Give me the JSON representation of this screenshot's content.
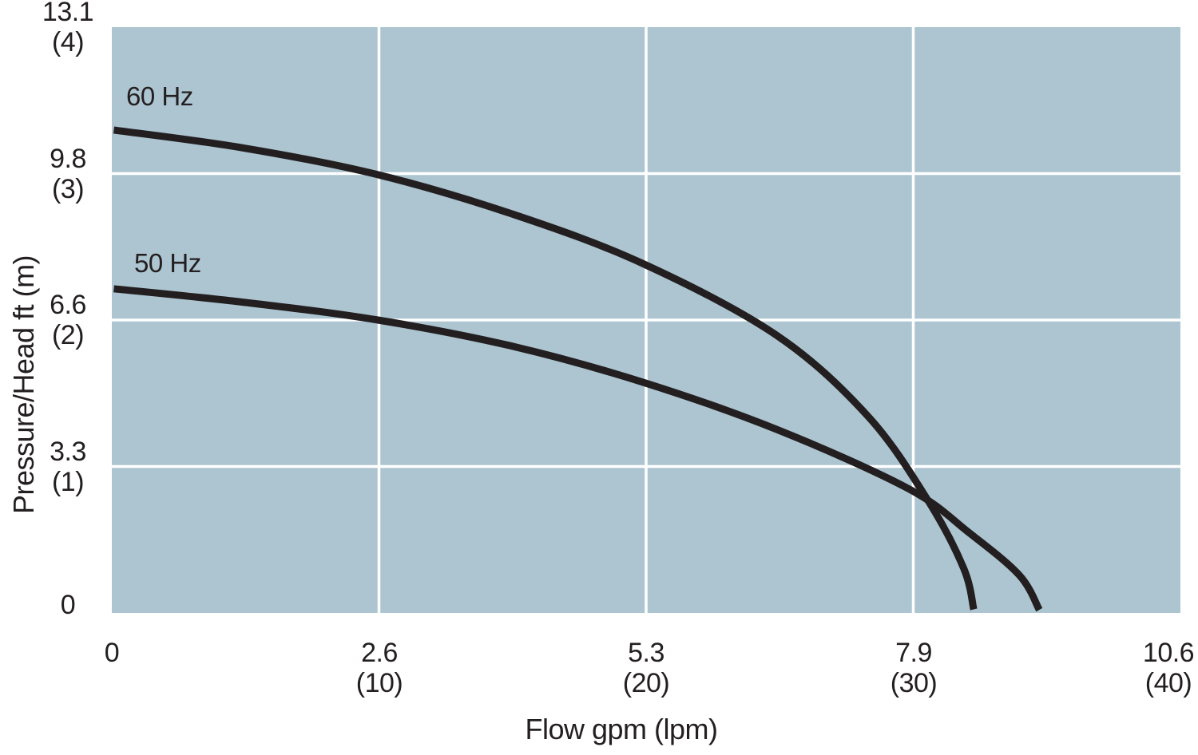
{
  "chart_data": {
    "type": "line",
    "title": "",
    "xlabel": "Flow gpm (lpm)",
    "ylabel": "Pressure/Head ft (m)",
    "xlim": [
      0,
      10.6
    ],
    "ylim": [
      0,
      13.1
    ],
    "grid": true,
    "legend_position": "inline-curve-labels",
    "plot_bg_color": "#adc5d0",
    "grid_color": "#ffffff",
    "line_color": "#231f20",
    "text_color": "#231f20",
    "x_ticks": [
      {
        "label_gpm": "0",
        "label_lpm": "",
        "value": 0
      },
      {
        "label_gpm": "2.6",
        "label_lpm": "(10)",
        "value": 2.65
      },
      {
        "label_gpm": "5.3",
        "label_lpm": "(20)",
        "value": 5.3
      },
      {
        "label_gpm": "7.9",
        "label_lpm": "(30)",
        "value": 7.95
      },
      {
        "label_gpm": "10.6",
        "label_lpm": "(40)",
        "value": 10.6
      }
    ],
    "y_ticks": [
      {
        "label_ft": "13.1",
        "label_m": "(4)",
        "value": 13.1
      },
      {
        "label_ft": "9.8",
        "label_m": "(3)",
        "value": 9.825
      },
      {
        "label_ft": "6.6",
        "label_m": "(2)",
        "value": 6.55
      },
      {
        "label_ft": "3.3",
        "label_m": "(1)",
        "value": 3.275
      },
      {
        "label_ft": "0",
        "label_m": "",
        "value": 0
      }
    ],
    "series": [
      {
        "name": "60 Hz",
        "x_gpm": [
          0.02,
          1.3,
          2.64,
          4.0,
          5.28,
          6.6,
          7.5,
          8.1,
          8.45,
          8.55
        ],
        "y_ft": [
          10.8,
          10.4,
          9.8,
          8.9,
          7.8,
          6.2,
          4.4,
          2.5,
          1.0,
          0.08
        ],
        "label_x_gpm": 0.14,
        "label_y_ft": 11.85
      },
      {
        "name": "50 Hz",
        "x_gpm": [
          0.02,
          1.3,
          2.64,
          4.0,
          5.28,
          6.6,
          7.9,
          8.5,
          9.0,
          9.2
        ],
        "y_ft": [
          7.25,
          6.95,
          6.55,
          5.95,
          5.15,
          4.1,
          2.78,
          1.8,
          0.85,
          0.07
        ],
        "label_x_gpm": 0.22,
        "label_y_ft": 8.12
      }
    ]
  }
}
